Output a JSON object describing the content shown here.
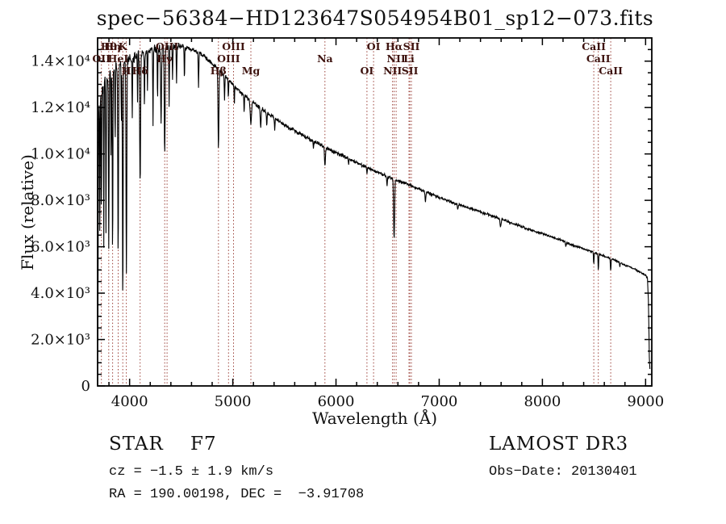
{
  "title": "spec−56384−HD123647S054954B01_sp12−073.fits",
  "footer": {
    "classification": "STAR    F7",
    "survey": "LAMOST DR3",
    "cz": "cz = −1.5 ± 1.9 km/s",
    "obs_date": "Obs−Date: 20130401",
    "coordinates": "RA = 190.00198, DEC =  −3.91708"
  },
  "chart_data": {
    "type": "line",
    "title": "spec−56384−HD123647S054954B01_sp12−073.fits",
    "xlabel": "Wavelength (Å)",
    "ylabel": "Flux (relative)",
    "xlim": [
      3690,
      9060
    ],
    "ylim": [
      0,
      15000
    ],
    "grid": false,
    "legend": "none",
    "series_color": "#000000",
    "line_marker_color": "#9b4038",
    "line_label_color": "#3d120e",
    "x_ticks": [
      {
        "value": 4000,
        "label": "4000"
      },
      {
        "value": 5000,
        "label": "5000"
      },
      {
        "value": 6000,
        "label": "6000"
      },
      {
        "value": 7000,
        "label": "7000"
      },
      {
        "value": 8000,
        "label": "8000"
      },
      {
        "value": 9000,
        "label": "9000"
      }
    ],
    "y_ticks": [
      {
        "value": 0,
        "label": "0"
      },
      {
        "value": 2000,
        "label": "2.0×10³"
      },
      {
        "value": 4000,
        "label": "4.0×10³"
      },
      {
        "value": 6000,
        "label": "6.0×10³"
      },
      {
        "value": 8000,
        "label": "8.0×10³"
      },
      {
        "value": 10000,
        "label": "1.0×10⁴"
      },
      {
        "value": 12000,
        "label": "1.2×10⁴"
      },
      {
        "value": 14000,
        "label": "1.4×10⁴"
      }
    ],
    "x_minor_step": 200,
    "y_minor_step": 500,
    "spectral_lines": [
      {
        "label": "Hθ",
        "wavelength": 3798,
        "row": 0
      },
      {
        "label": "K",
        "wavelength": 3934,
        "row": 0
      },
      {
        "label": "Hη",
        "wavelength": 3835,
        "row": 0
      },
      {
        "label": "OIII",
        "wavelength": 4363,
        "row": 0
      },
      {
        "label": "OIII",
        "wavelength": 5007,
        "row": 0
      },
      {
        "label": "OI",
        "wavelength": 6364,
        "row": 0
      },
      {
        "label": "Hα",
        "wavelength": 6563,
        "row": 0
      },
      {
        "label": "SII",
        "wavelength": 6731,
        "row": 0
      },
      {
        "label": "CaII",
        "wavelength": 8498,
        "row": 0
      },
      {
        "label": "OII",
        "wavelength": 3727,
        "row": 1
      },
      {
        "label": "HeI",
        "wavelength": 3889,
        "row": 1
      },
      {
        "label": "Hγ",
        "wavelength": 4340,
        "row": 1
      },
      {
        "label": "OIII",
        "wavelength": 4959,
        "row": 1
      },
      {
        "label": "Na",
        "wavelength": 5893,
        "row": 1
      },
      {
        "label": "NII",
        "wavelength": 6583,
        "row": 1
      },
      {
        "label": "Li",
        "wavelength": 6707,
        "row": 1
      },
      {
        "label": "CaII",
        "wavelength": 8542,
        "row": 1
      },
      {
        "label": "H",
        "wavelength": 3968,
        "row": 2
      },
      {
        "label": "Hδ",
        "wavelength": 4102,
        "row": 2
      },
      {
        "label": "Hβ",
        "wavelength": 4861,
        "row": 2
      },
      {
        "label": "Mg",
        "wavelength": 5175,
        "row": 2
      },
      {
        "label": "OI",
        "wavelength": 6300,
        "row": 2
      },
      {
        "label": "NII",
        "wavelength": 6548,
        "row": 2
      },
      {
        "label": "SII",
        "wavelength": 6716,
        "row": 2
      },
      {
        "label": "CaII",
        "wavelength": 8662,
        "row": 2
      }
    ],
    "spectrum_range": [
      3693,
      9044
    ],
    "sample_step": 3,
    "spectrum_continuum": [
      [
        3693,
        1800
      ],
      [
        3697,
        8000
      ],
      [
        3702,
        11800
      ],
      [
        3710,
        12500
      ],
      [
        3725,
        12800
      ],
      [
        3760,
        13100
      ],
      [
        3800,
        13400
      ],
      [
        3850,
        13700
      ],
      [
        3900,
        13850
      ],
      [
        3950,
        14000
      ],
      [
        4000,
        14100
      ],
      [
        4100,
        14300
      ],
      [
        4200,
        14450
      ],
      [
        4300,
        14550
      ],
      [
        4400,
        14620
      ],
      [
        4500,
        14650
      ],
      [
        4600,
        14500
      ],
      [
        4700,
        14300
      ],
      [
        4800,
        13900
      ],
      [
        4900,
        13450
      ],
      [
        5000,
        13000
      ],
      [
        5100,
        12550
      ],
      [
        5200,
        12200
      ],
      [
        5300,
        11900
      ],
      [
        5400,
        11550
      ],
      [
        5500,
        11250
      ],
      [
        5600,
        11000
      ],
      [
        5700,
        10750
      ],
      [
        5800,
        10500
      ],
      [
        5900,
        10270
      ],
      [
        6000,
        10050
      ],
      [
        6100,
        9850
      ],
      [
        6200,
        9620
      ],
      [
        6300,
        9420
      ],
      [
        6400,
        9220
      ],
      [
        6500,
        9020
      ],
      [
        6600,
        8850
      ],
      [
        6700,
        8680
      ],
      [
        6800,
        8500
      ],
      [
        6900,
        8300
      ],
      [
        7000,
        8120
      ],
      [
        7100,
        7960
      ],
      [
        7200,
        7800
      ],
      [
        7300,
        7650
      ],
      [
        7400,
        7500
      ],
      [
        7500,
        7350
      ],
      [
        7600,
        7200
      ],
      [
        7700,
        7020
      ],
      [
        7800,
        6860
      ],
      [
        7900,
        6700
      ],
      [
        8000,
        6560
      ],
      [
        8100,
        6400
      ],
      [
        8200,
        6250
      ],
      [
        8300,
        6060
      ],
      [
        8400,
        5900
      ],
      [
        8500,
        5760
      ],
      [
        8600,
        5600
      ],
      [
        8700,
        5420
      ],
      [
        8800,
        5220
      ],
      [
        8900,
        5020
      ],
      [
        8960,
        4870
      ],
      [
        9000,
        4760
      ],
      [
        9018,
        4640
      ],
      [
        9028,
        3600
      ],
      [
        9036,
        1300
      ],
      [
        9044,
        500
      ]
    ],
    "absorption_features": [
      [
        3712,
        0.5,
        5
      ],
      [
        3727,
        0.4,
        6
      ],
      [
        3750,
        0.55,
        5
      ],
      [
        3771,
        0.5,
        6
      ],
      [
        3798,
        0.55,
        7
      ],
      [
        3820,
        0.3,
        5
      ],
      [
        3835,
        0.58,
        7
      ],
      [
        3860,
        0.25,
        5
      ],
      [
        3889,
        0.6,
        8
      ],
      [
        3920,
        0.2,
        5
      ],
      [
        3934,
        0.75,
        8
      ],
      [
        3969,
        0.66,
        9
      ],
      [
        4026,
        0.18,
        6
      ],
      [
        4077,
        0.15,
        5
      ],
      [
        4102,
        0.4,
        10
      ],
      [
        4144,
        0.15,
        6
      ],
      [
        4173,
        0.12,
        5
      ],
      [
        4227,
        0.22,
        6
      ],
      [
        4271,
        0.15,
        6
      ],
      [
        4305,
        0.22,
        9
      ],
      [
        4340,
        0.32,
        10
      ],
      [
        4383,
        0.18,
        6
      ],
      [
        4416,
        0.1,
        6
      ],
      [
        4455,
        0.1,
        6
      ],
      [
        4531,
        0.1,
        6
      ],
      [
        4668,
        0.1,
        7
      ],
      [
        4861,
        0.25,
        10
      ],
      [
        4920,
        0.08,
        6
      ],
      [
        4957,
        0.06,
        6
      ],
      [
        5015,
        0.06,
        6
      ],
      [
        5110,
        0.06,
        6
      ],
      [
        5175,
        0.08,
        14
      ],
      [
        5270,
        0.07,
        10
      ],
      [
        5329,
        0.05,
        7
      ],
      [
        5406,
        0.04,
        7
      ],
      [
        5782,
        0.03,
        6
      ],
      [
        5893,
        0.08,
        10
      ],
      [
        6122,
        0.03,
        6
      ],
      [
        6300,
        0.03,
        6
      ],
      [
        6495,
        0.04,
        8
      ],
      [
        6563,
        0.29,
        11
      ],
      [
        6867,
        0.05,
        9
      ],
      [
        7180,
        0.03,
        8
      ],
      [
        7594,
        0.05,
        12
      ],
      [
        8227,
        0.03,
        8
      ],
      [
        8498,
        0.09,
        7
      ],
      [
        8542,
        0.12,
        7
      ],
      [
        8662,
        0.1,
        7
      ],
      [
        8750,
        0.04,
        6
      ]
    ]
  }
}
